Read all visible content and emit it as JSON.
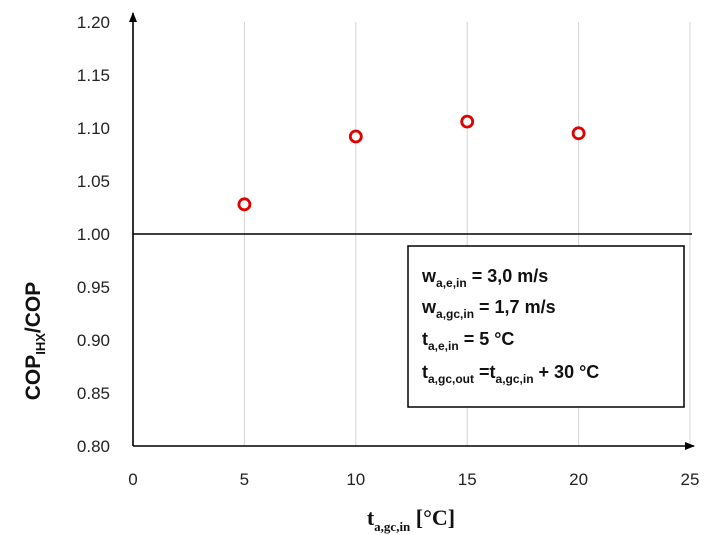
{
  "chart_data": {
    "type": "scatter",
    "title": "",
    "x": [
      5,
      10,
      15,
      20
    ],
    "y": [
      1.028,
      1.092,
      1.106,
      1.095
    ],
    "xlim": [
      0,
      25
    ],
    "ylim": [
      0.8,
      1.2
    ],
    "x_ticks": [
      "0",
      "5",
      "10",
      "15",
      "20",
      "25"
    ],
    "y_ticks": [
      "0.80",
      "0.85",
      "0.90",
      "0.95",
      "1.00",
      "1.05",
      "1.10",
      "1.15",
      "1.20"
    ],
    "xlabel": {
      "main": "t",
      "sub": "a,gc,in",
      "unit": " [°C]"
    },
    "ylabel": {
      "main": "COP",
      "sub": "IHX",
      "rest": "/COP"
    },
    "reference_line": 1.0,
    "grid": "vertical",
    "marker": "open-circle",
    "marker_color": "#e00000",
    "annotations": [
      {
        "parts": [
          {
            "t": "w"
          },
          {
            "t": "a,e,in",
            "sub": true
          },
          {
            "t": " = 3,0 m/s"
          }
        ]
      },
      {
        "parts": [
          {
            "t": "w"
          },
          {
            "t": "a,gc,in",
            "sub": true
          },
          {
            "t": " = 1,7 m/s"
          }
        ]
      },
      {
        "parts": [
          {
            "t": "t"
          },
          {
            "t": "a,e,in",
            "sub": true
          },
          {
            "t": " = 5 °C"
          }
        ]
      },
      {
        "parts": [
          {
            "t": "t"
          },
          {
            "t": "a,gc,out",
            "sub": true
          },
          {
            "t": " =t"
          },
          {
            "t": "a,gc,in",
            "sub": true
          },
          {
            "t": "  + 30 °C"
          }
        ]
      }
    ]
  }
}
